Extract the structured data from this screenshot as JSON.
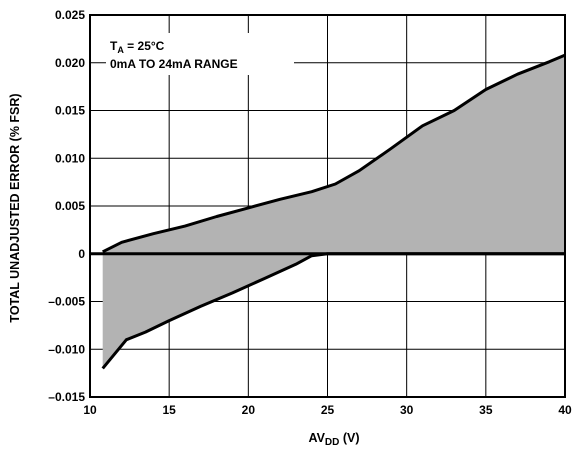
{
  "chart_data": {
    "type": "area",
    "xlabel": {
      "main": "AV",
      "sub": "DD",
      "suffix": " (V)"
    },
    "ylabel": "TOTAL UNADJUSTED ERROR (% FSR)",
    "xlim": [
      10,
      40
    ],
    "ylim": [
      -0.015,
      0.025
    ],
    "x_ticks": [
      10,
      15,
      20,
      25,
      30,
      35,
      40
    ],
    "x_tick_labels": [
      "10",
      "15",
      "20",
      "25",
      "30",
      "35",
      "40"
    ],
    "y_ticks": [
      0.025,
      0.02,
      0.015,
      0.01,
      0.005,
      0,
      -0.005,
      -0.01,
      -0.015
    ],
    "y_tick_labels": [
      "0.025",
      "0.020",
      "0.015",
      "0.010",
      "0.005",
      "0",
      "–0.005",
      "–0.010",
      "–0.015"
    ],
    "grid": true,
    "annotation": {
      "line1_main": "T",
      "line1_sub": "A",
      "line1_rest": " = 25°C",
      "line2": "0mA TO 24mA RANGE"
    },
    "series": [
      {
        "role": "upper",
        "x": [
          10.8,
          12,
          14,
          16,
          18,
          20,
          22,
          24,
          25.5,
          27,
          29,
          31,
          33,
          35,
          37,
          39,
          40
        ],
        "y": [
          0.0002,
          0.0012,
          0.0021,
          0.0029,
          0.0039,
          0.0048,
          0.0057,
          0.0065,
          0.0073,
          0.0087,
          0.011,
          0.0134,
          0.015,
          0.0172,
          0.0188,
          0.0201,
          0.0208
        ]
      },
      {
        "role": "lower",
        "x": [
          10.8,
          12.3,
          13.5,
          15,
          17,
          19,
          21,
          23,
          24,
          25,
          28,
          32,
          36,
          40
        ],
        "y": [
          -0.012,
          -0.009,
          -0.0082,
          -0.007,
          -0.0055,
          -0.0041,
          -0.0026,
          -0.0011,
          -0.0002,
          0,
          0,
          0,
          0,
          0
        ]
      }
    ],
    "colors": {
      "fill": "#b3b3b3",
      "line": "#000000",
      "grid": "#000000"
    }
  }
}
